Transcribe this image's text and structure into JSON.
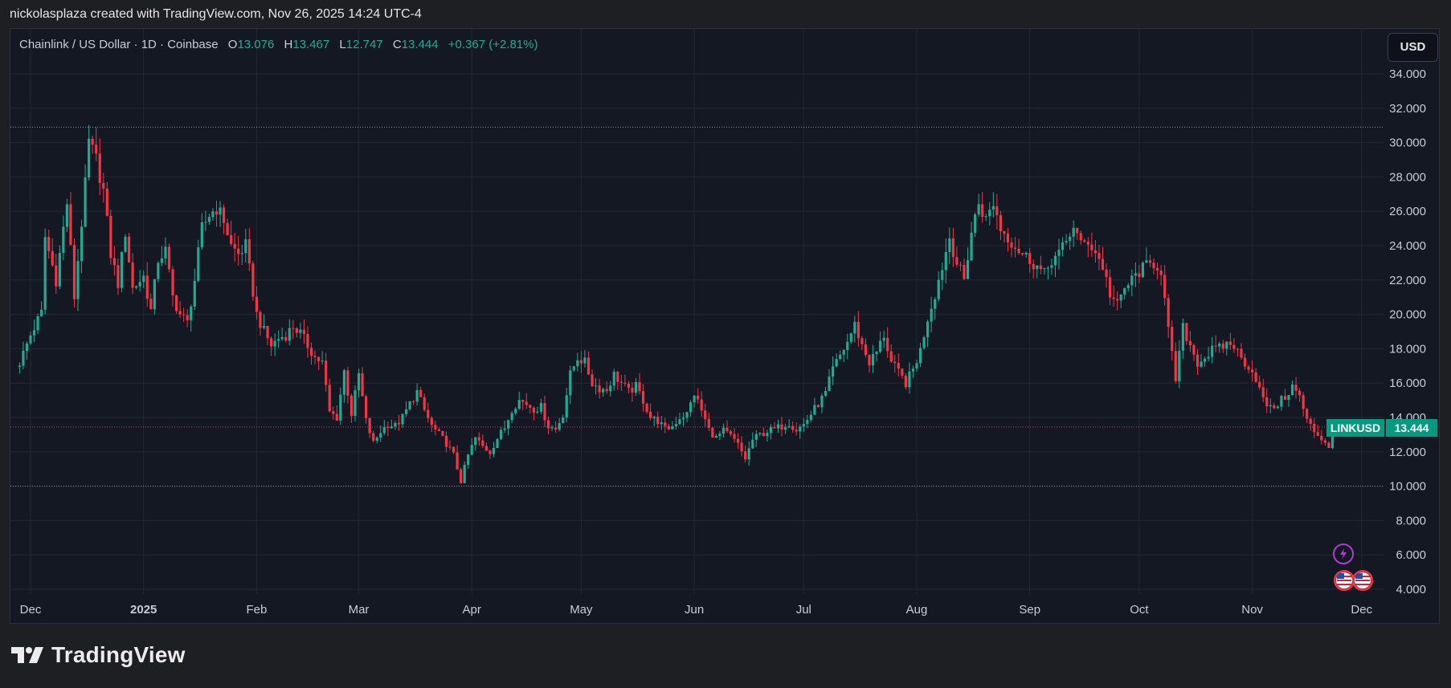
{
  "caption": "nickolasplaza created with TradingView.com, Nov 26, 2025 14:24 UTC-4",
  "legend": {
    "symbol_text": "Chainlink / US Dollar · 1D · Coinbase",
    "o_label": "O",
    "o_value": "13.076",
    "h_label": "H",
    "h_value": "13.467",
    "l_label": "L",
    "l_value": "12.747",
    "c_label": "C",
    "c_value": "13.444",
    "change": "+0.367 (+2.81%)"
  },
  "currency_button": "USD",
  "brand": "TradingView",
  "colors": {
    "up": "#22ab94",
    "down": "#f23645",
    "background": "#141823",
    "grid": "#232733"
  },
  "icons": [
    "lightning-event-icon",
    "us-flag-event-icon",
    "us-flag-event-icon"
  ],
  "chart_data": {
    "type": "candlestick",
    "symbol": "LINKUSD",
    "ylim": [
      4,
      35
    ],
    "y_ticks": [
      "34.000",
      "32.000",
      "30.000",
      "28.000",
      "26.000",
      "24.000",
      "22.000",
      "20.000",
      "18.000",
      "16.000",
      "14.000",
      "12.000",
      "10.000",
      "8.000",
      "6.000",
      "4.000"
    ],
    "x_ticks": [
      {
        "label": "Dec",
        "day": 3,
        "bold": false
      },
      {
        "label": "2025",
        "day": 34,
        "bold": true
      },
      {
        "label": "Feb",
        "day": 65,
        "bold": false
      },
      {
        "label": "Mar",
        "day": 93,
        "bold": false
      },
      {
        "label": "Apr",
        "day": 124,
        "bold": false
      },
      {
        "label": "May",
        "day": 154,
        "bold": false
      },
      {
        "label": "Jun",
        "day": 185,
        "bold": false
      },
      {
        "label": "Jul",
        "day": 215,
        "bold": false
      },
      {
        "label": "Aug",
        "day": 246,
        "bold": false
      },
      {
        "label": "Sep",
        "day": 277,
        "bold": false
      },
      {
        "label": "Oct",
        "day": 307,
        "bold": false
      },
      {
        "label": "Nov",
        "day": 338,
        "bold": false
      },
      {
        "label": "Dec",
        "day": 368,
        "bold": false
      }
    ],
    "horizontal_levels": [
      30.9,
      10.0
    ],
    "last_price": 13.444,
    "last_price_label": "LINKUSD",
    "last_price_value": "13.444",
    "anchors": [
      [
        0,
        17.2
      ],
      [
        3,
        18.8
      ],
      [
        6,
        20.1
      ],
      [
        7,
        24.5
      ],
      [
        10,
        22.0
      ],
      [
        13,
        26.5
      ],
      [
        15,
        21.0
      ],
      [
        18,
        27.5
      ],
      [
        19,
        30.0
      ],
      [
        21,
        29.0
      ],
      [
        23,
        27.2
      ],
      [
        25,
        23.5
      ],
      [
        27,
        21.8
      ],
      [
        29,
        24.8
      ],
      [
        31,
        21.5
      ],
      [
        34,
        22.2
      ],
      [
        36,
        20.2
      ],
      [
        38,
        23.2
      ],
      [
        40,
        23.7
      ],
      [
        42,
        21.0
      ],
      [
        44,
        20.0
      ],
      [
        46,
        19.5
      ],
      [
        48,
        22.0
      ],
      [
        50,
        25.0
      ],
      [
        52,
        25.8
      ],
      [
        54,
        26.2
      ],
      [
        56,
        25.5
      ],
      [
        58,
        24.0
      ],
      [
        60,
        23.5
      ],
      [
        62,
        24.0
      ],
      [
        63,
        22.6
      ],
      [
        65,
        20.0
      ],
      [
        67,
        19.0
      ],
      [
        69,
        18.2
      ],
      [
        71,
        18.6
      ],
      [
        73,
        18.8
      ],
      [
        75,
        19.3
      ],
      [
        77,
        18.9
      ],
      [
        79,
        18.2
      ],
      [
        81,
        17.5
      ],
      [
        83,
        17.2
      ],
      [
        85,
        14.3
      ],
      [
        87,
        14.0
      ],
      [
        89,
        16.7
      ],
      [
        91,
        14.2
      ],
      [
        93,
        16.5
      ],
      [
        95,
        13.8
      ],
      [
        97,
        12.5
      ],
      [
        99,
        13.2
      ],
      [
        101,
        13.6
      ],
      [
        103,
        13.5
      ],
      [
        105,
        14.0
      ],
      [
        107,
        14.8
      ],
      [
        109,
        15.5
      ],
      [
        111,
        14.4
      ],
      [
        113,
        13.5
      ],
      [
        115,
        13.0
      ],
      [
        117,
        12.5
      ],
      [
        119,
        11.8
      ],
      [
        121,
        10.3
      ],
      [
        123,
        11.8
      ],
      [
        125,
        12.8
      ],
      [
        127,
        12.3
      ],
      [
        129,
        12.0
      ],
      [
        131,
        12.8
      ],
      [
        133,
        13.4
      ],
      [
        135,
        14.5
      ],
      [
        137,
        15.0
      ],
      [
        139,
        14.8
      ],
      [
        141,
        14.5
      ],
      [
        143,
        14.6
      ],
      [
        145,
        13.5
      ],
      [
        147,
        13.3
      ],
      [
        149,
        14.2
      ],
      [
        151,
        16.5
      ],
      [
        153,
        17.5
      ],
      [
        155,
        17.2
      ],
      [
        157,
        16.0
      ],
      [
        159,
        15.7
      ],
      [
        161,
        15.6
      ],
      [
        163,
        16.5
      ],
      [
        165,
        16.0
      ],
      [
        167,
        15.5
      ],
      [
        169,
        15.8
      ],
      [
        171,
        15.0
      ],
      [
        173,
        14.0
      ],
      [
        175,
        13.8
      ],
      [
        177,
        13.3
      ],
      [
        179,
        13.5
      ],
      [
        181,
        14.0
      ],
      [
        183,
        14.2
      ],
      [
        185,
        15.4
      ],
      [
        187,
        14.4
      ],
      [
        189,
        13.3
      ],
      [
        191,
        12.8
      ],
      [
        193,
        13.2
      ],
      [
        195,
        12.9
      ],
      [
        197,
        12.4
      ],
      [
        199,
        11.6
      ],
      [
        201,
        12.7
      ],
      [
        203,
        13.0
      ],
      [
        205,
        13.2
      ],
      [
        207,
        13.3
      ],
      [
        209,
        13.5
      ],
      [
        211,
        13.7
      ],
      [
        213,
        13.3
      ],
      [
        215,
        13.6
      ],
      [
        217,
        14.2
      ],
      [
        219,
        14.8
      ],
      [
        221,
        15.4
      ],
      [
        223,
        16.8
      ],
      [
        225,
        17.6
      ],
      [
        227,
        18.4
      ],
      [
        229,
        19.4
      ],
      [
        231,
        18.2
      ],
      [
        233,
        17.2
      ],
      [
        235,
        17.8
      ],
      [
        237,
        18.8
      ],
      [
        239,
        17.2
      ],
      [
        241,
        16.6
      ],
      [
        243,
        16.0
      ],
      [
        245,
        16.8
      ],
      [
        247,
        17.9
      ],
      [
        249,
        19.8
      ],
      [
        251,
        21.2
      ],
      [
        253,
        22.8
      ],
      [
        255,
        24.5
      ],
      [
        257,
        23.0
      ],
      [
        259,
        22.0
      ],
      [
        261,
        24.8
      ],
      [
        263,
        26.5
      ],
      [
        265,
        25.5
      ],
      [
        267,
        26.5
      ],
      [
        269,
        25.0
      ],
      [
        271,
        24.5
      ],
      [
        273,
        24.0
      ],
      [
        275,
        23.5
      ],
      [
        277,
        23.2
      ],
      [
        279,
        22.8
      ],
      [
        281,
        22.3
      ],
      [
        283,
        23.2
      ],
      [
        285,
        23.5
      ],
      [
        287,
        24.2
      ],
      [
        289,
        25.2
      ],
      [
        291,
        24.0
      ],
      [
        293,
        24.3
      ],
      [
        295,
        23.6
      ],
      [
        297,
        22.8
      ],
      [
        299,
        21.2
      ],
      [
        301,
        20.5
      ],
      [
        303,
        21.5
      ],
      [
        305,
        22.0
      ],
      [
        307,
        22.5
      ],
      [
        309,
        22.8
      ],
      [
        311,
        23.0
      ],
      [
        313,
        22.6
      ],
      [
        315,
        19.0
      ],
      [
        317,
        16.2
      ],
      [
        319,
        19.2
      ],
      [
        321,
        18.2
      ],
      [
        323,
        17.2
      ],
      [
        325,
        17.5
      ],
      [
        327,
        17.9
      ],
      [
        329,
        18.0
      ],
      [
        331,
        18.3
      ],
      [
        333,
        18.2
      ],
      [
        335,
        17.4
      ],
      [
        337,
        17.0
      ],
      [
        339,
        16.3
      ],
      [
        341,
        15.0
      ],
      [
        343,
        14.5
      ],
      [
        345,
        14.8
      ],
      [
        347,
        15.2
      ],
      [
        349,
        15.8
      ],
      [
        351,
        15.2
      ],
      [
        353,
        13.8
      ],
      [
        355,
        13.2
      ],
      [
        357,
        12.8
      ],
      [
        359,
        12.3
      ],
      [
        360,
        13.076
      ],
      [
        361,
        13.444
      ]
    ]
  }
}
